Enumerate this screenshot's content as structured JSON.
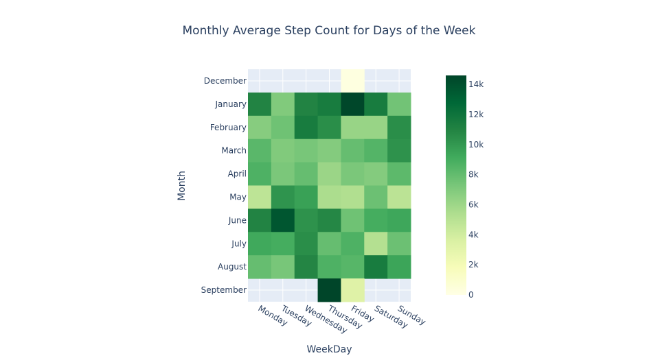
{
  "chart_data": {
    "type": "heatmap",
    "title": "Monthly Average Step Count for Days of the Week",
    "xlabel": "WeekDay",
    "ylabel": "Month",
    "x_categories": [
      "Monday",
      "Tuesday",
      "Wednesday",
      "Thursday",
      "Friday",
      "Saturday",
      "Sunday"
    ],
    "y_categories": [
      "December",
      "January",
      "February",
      "March",
      "April",
      "May",
      "June",
      "July",
      "August",
      "September"
    ],
    "z": [
      [
        null,
        null,
        null,
        null,
        200,
        null,
        null
      ],
      [
        11000,
        7000,
        11000,
        11500,
        14500,
        11500,
        7500
      ],
      [
        6800,
        7600,
        11500,
        10500,
        6200,
        6200,
        10500
      ],
      [
        8300,
        7000,
        7300,
        6900,
        7900,
        8500,
        10300
      ],
      [
        8700,
        7200,
        7900,
        6100,
        7200,
        6900,
        8200
      ],
      [
        4800,
        10200,
        9600,
        5500,
        5300,
        7700,
        4900
      ],
      [
        11000,
        13700,
        10300,
        10800,
        7600,
        9000,
        9300
      ],
      [
        9200,
        9000,
        10500,
        7900,
        8700,
        5200,
        7700
      ],
      [
        7900,
        7300,
        10900,
        8700,
        8400,
        11500,
        9400
      ],
      [
        null,
        null,
        null,
        14600,
        3300,
        null,
        null
      ]
    ],
    "zlim": [
      0,
      14600
    ],
    "colorscale": "Greens",
    "colorbar": {
      "ticks": [
        0,
        2000,
        4000,
        6000,
        8000,
        10000,
        12000,
        14000
      ],
      "tick_labels": [
        "0",
        "2k",
        "4k",
        "6k",
        "8k",
        "10k",
        "12k",
        "14k"
      ]
    },
    "colors": {
      "plot_bg": "#e5ecf6",
      "text": "#2a3f5f",
      "grid": "#ffffff"
    },
    "legend": "colorbar-right"
  }
}
